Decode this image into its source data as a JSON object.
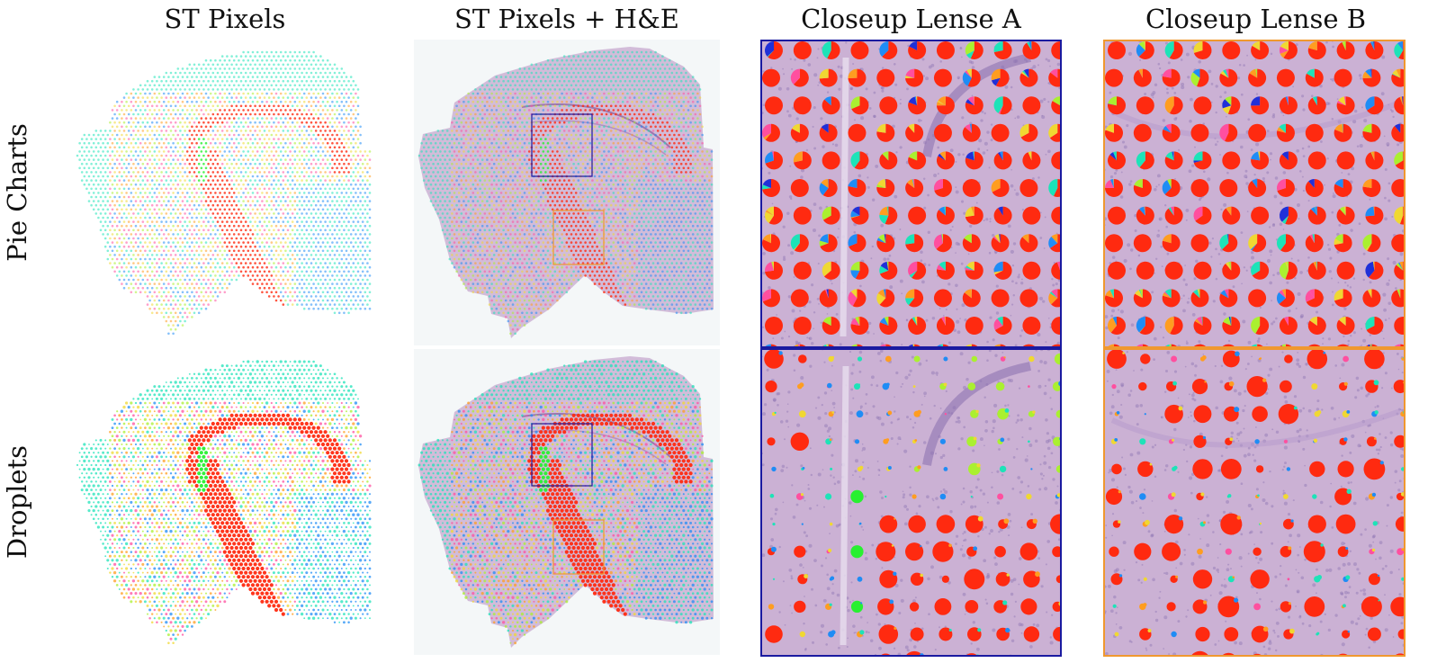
{
  "columns": [
    "ST Pixels",
    "ST Pixels + H&E",
    "Closeup Lense A",
    "Closeup Lense B"
  ],
  "rows": [
    "Pie Charts",
    "Droplets"
  ],
  "colors": {
    "lens_a_border": "#1a1aa0",
    "lens_b_border": "#f0982f",
    "tissue": "#cbb1d4",
    "tissue_light": "#e0d3e6",
    "background": "#f4f7f8",
    "cell_types": [
      "#ff2a10",
      "#28f030",
      "#1f8cf5",
      "#f0d832",
      "#ff4f9f",
      "#1de3b8",
      "#ff9d20",
      "#2030d8",
      "#aaf030"
    ]
  }
}
